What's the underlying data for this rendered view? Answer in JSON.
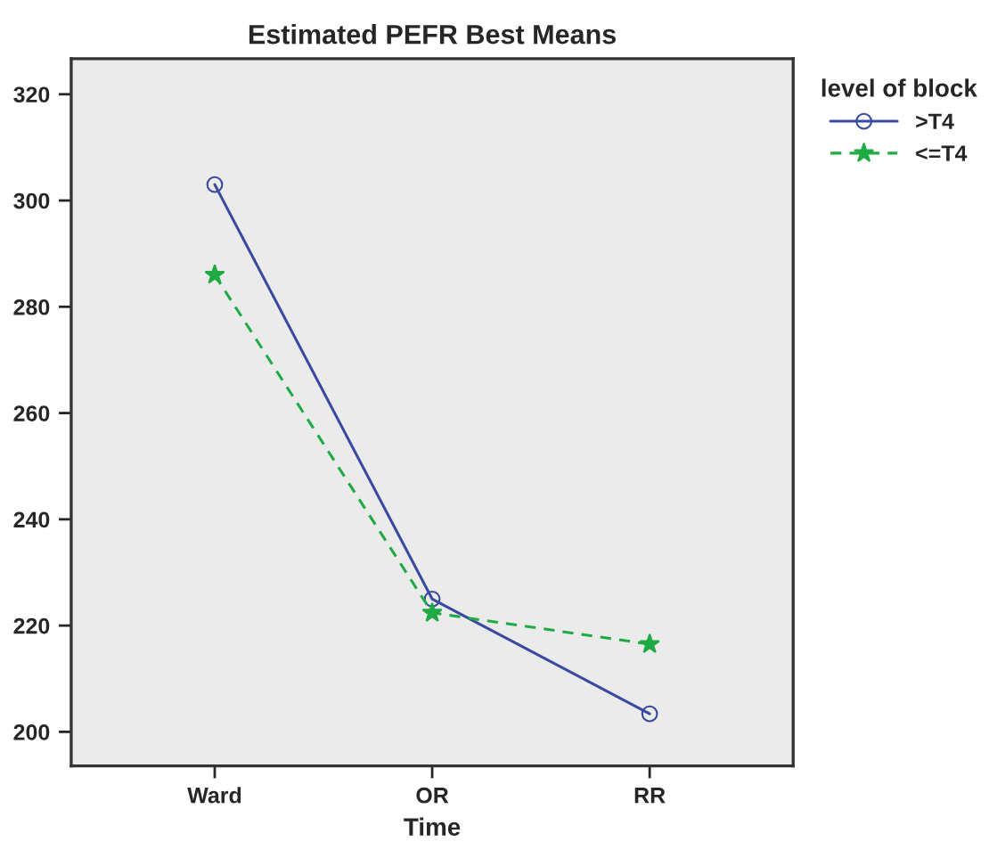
{
  "chart_data": {
    "type": "line",
    "title": "Estimated PEFR Best Means",
    "xlabel": "Time",
    "legend_title": "level of block",
    "categories": [
      "Ward",
      "OR",
      "RR"
    ],
    "series": [
      {
        "name": ">T4",
        "color": "#3a4aa0",
        "values": [
          303,
          225,
          203.4
        ],
        "marker": "circle",
        "line_style": "solid"
      },
      {
        "name": "<=T4",
        "color": "#1faa44",
        "values": [
          286,
          222.4,
          216.5
        ],
        "marker": "star",
        "line_style": "dashed"
      }
    ],
    "ylim": [
      193.6,
      326.7
    ],
    "yticks": [
      200,
      220,
      240,
      260,
      280,
      300,
      320
    ],
    "grid": false,
    "legend": "top right"
  }
}
